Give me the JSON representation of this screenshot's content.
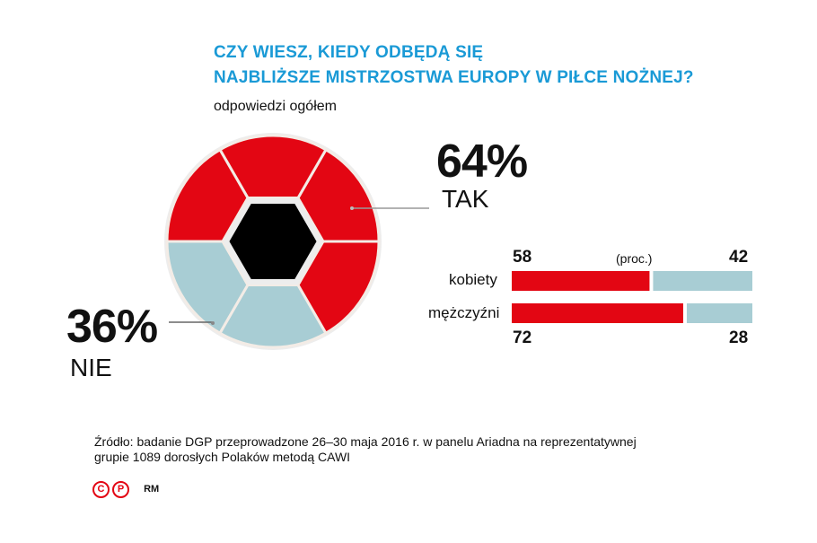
{
  "title_line1": "CZY WIESZ, KIEDY ODBĘDĄ SIĘ",
  "title_line2": "NAJBLIŻSZE MISTRZOSTWA EUROPY W PIŁCE NOŻNEJ?",
  "subtitle": "odpowiedzi ogółem",
  "colors": {
    "yes": "#e30613",
    "no": "#a8cdd4",
    "center": "#000000",
    "title": "#1a9ad6"
  },
  "chart_data": [
    {
      "type": "pie",
      "title": "odpowiedzi ogółem",
      "slices": [
        {
          "label": "TAK",
          "value": 64,
          "display": "64%"
        },
        {
          "label": "NIE",
          "value": 36,
          "display": "36%"
        }
      ]
    },
    {
      "type": "bar",
      "orientation": "horizontal-stacked",
      "unit_label": "(proc.)",
      "categories": [
        "kobiety",
        "mężczyźni"
      ],
      "series": [
        {
          "name": "TAK",
          "values": [
            58,
            72
          ]
        },
        {
          "name": "NIE",
          "values": [
            42,
            28
          ]
        }
      ],
      "xlim": [
        0,
        100
      ]
    }
  ],
  "source_line1": "Źródło: badanie DGP  przeprowadzone 26–30 maja 2016 r. w panelu Ariadna na reprezentatywnej",
  "source_line2": "grupie 1089 dorosłych Polaków metodą CAWI",
  "credits": {
    "c": "C",
    "p": "P",
    "author": "RM"
  }
}
